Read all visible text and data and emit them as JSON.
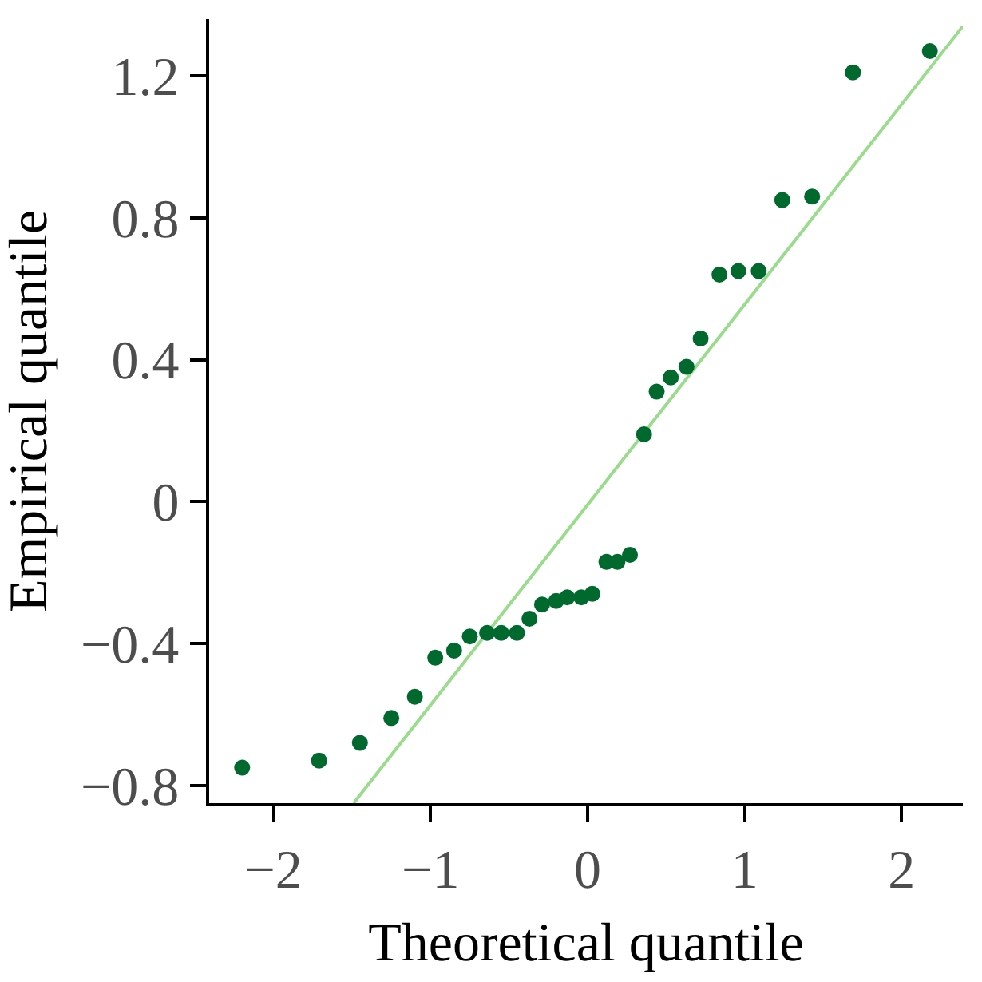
{
  "chart_data": {
    "type": "scatter",
    "xlabel": "Theoretical quantile",
    "ylabel": "Empirical quantile",
    "xlim": [
      -2.41,
      2.39
    ],
    "ylim": [
      -0.85,
      1.36
    ],
    "xticks": [
      {
        "value": -2,
        "label": "−2"
      },
      {
        "value": -1,
        "label": "−1"
      },
      0,
      1,
      2
    ],
    "yticks": [
      {
        "value": -0.8,
        "label": "−0.8"
      },
      {
        "value": -0.4,
        "label": "−0.4"
      },
      0,
      0.4,
      0.8,
      1.2
    ],
    "grid": false,
    "marker": "circle",
    "series": [
      {
        "type": "line",
        "marker": "none",
        "color": "#98dc8c",
        "x": [
          -1.49,
          2.39
        ],
        "values": [
          -0.85,
          1.34
        ]
      },
      {
        "color": "#006a2e",
        "x": [
          -2.2,
          -1.71,
          -1.45,
          -1.25,
          -1.1,
          -0.97,
          -0.85,
          -0.75,
          -0.64,
          -0.55,
          -0.45,
          -0.37,
          -0.29,
          -0.2,
          -0.13,
          -0.04,
          0.03,
          0.12,
          0.19,
          0.27,
          0.36,
          0.44,
          0.53,
          0.63,
          0.72,
          0.84,
          0.96,
          1.09,
          1.24,
          1.43,
          1.69,
          2.18
        ],
        "values": [
          -0.75,
          -0.73,
          -0.68,
          -0.61,
          -0.55,
          -0.44,
          -0.42,
          -0.38,
          -0.37,
          -0.37,
          -0.37,
          -0.33,
          -0.29,
          -0.28,
          -0.27,
          -0.27,
          -0.26,
          -0.17,
          -0.17,
          -0.15,
          0.19,
          0.31,
          0.35,
          0.38,
          0.46,
          0.64,
          0.65,
          0.65,
          0.85,
          0.86,
          1.21,
          1.27
        ]
      }
    ]
  }
}
